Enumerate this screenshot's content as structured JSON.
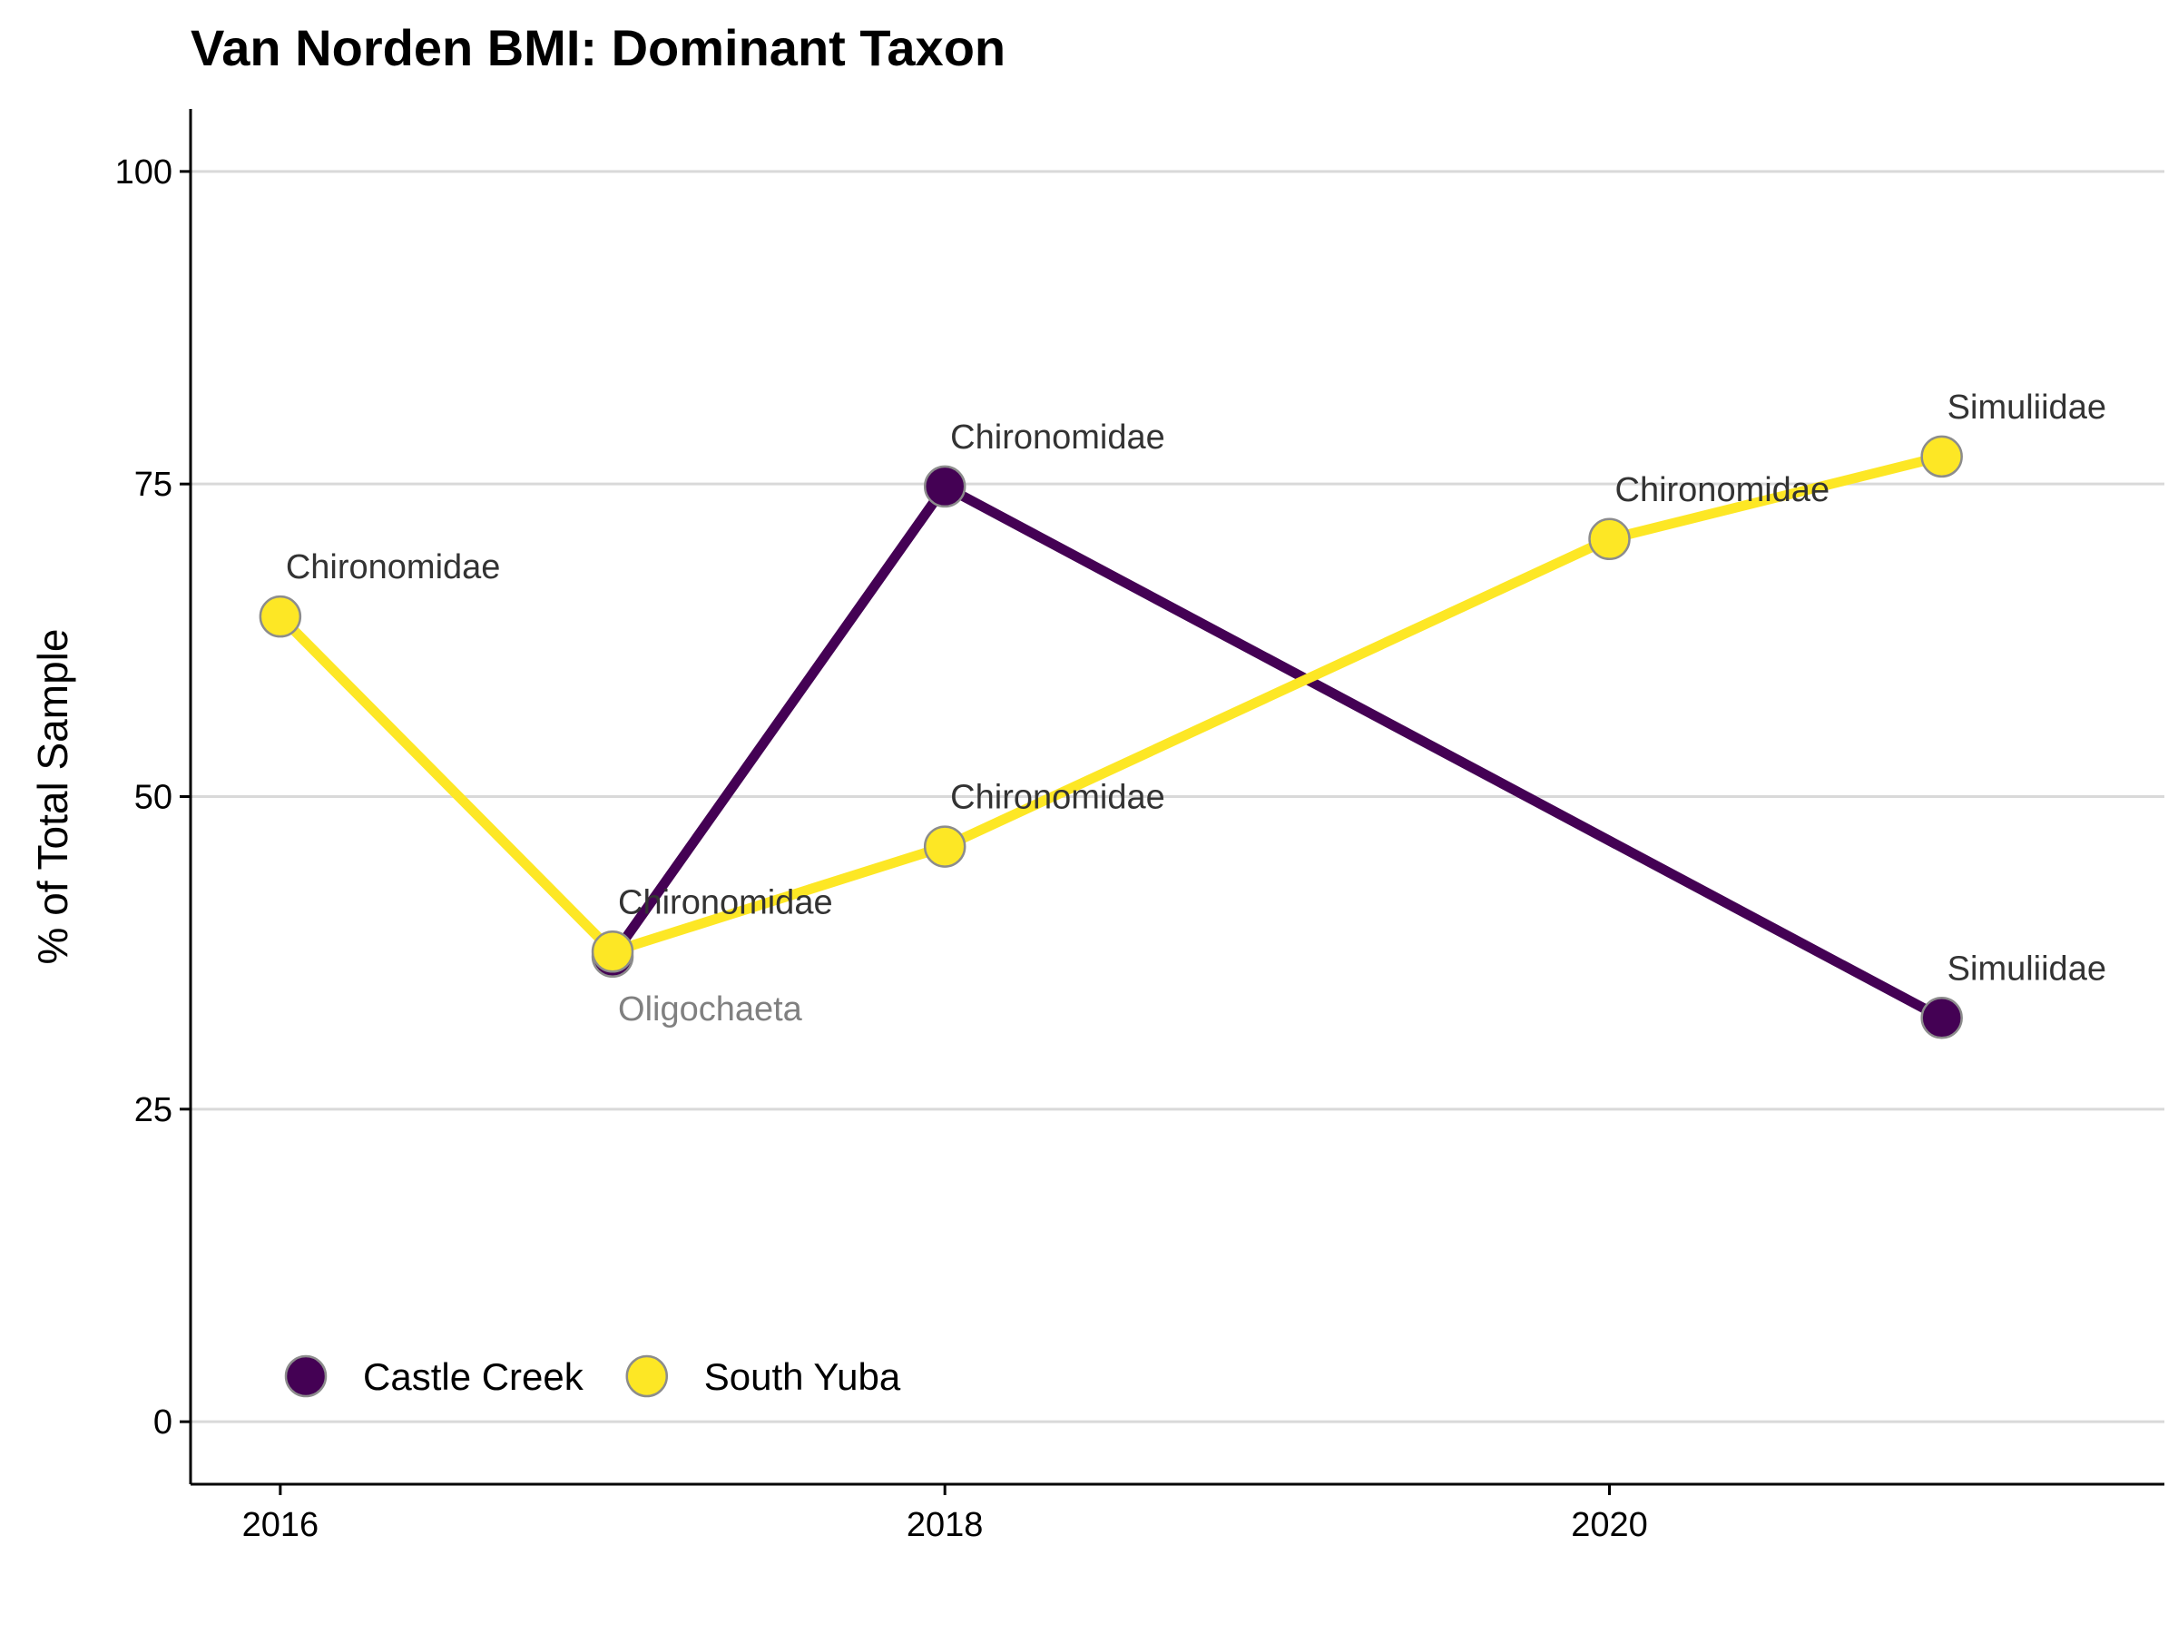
{
  "chart_data": {
    "type": "line",
    "title": "Van Norden BMI: Dominant Taxon",
    "xlabel": "",
    "ylabel": "% of Total Sample",
    "xlim": [
      2015.73,
      2021.67
    ],
    "ylim": [
      -5,
      105
    ],
    "xticks": [
      2016,
      2018,
      2020
    ],
    "yticks": [
      0,
      25,
      50,
      75,
      100
    ],
    "grid": "horizontal-major",
    "legend": {
      "placement": "bottom-left"
    },
    "series": [
      {
        "name": "Castle Creek",
        "color": "#440154",
        "points": [
          {
            "x": 2017,
            "y": 37.2,
            "label": "Oligochaeta",
            "label_color": "#808080",
            "label_pos": "below"
          },
          {
            "x": 2018,
            "y": 74.8,
            "label": "Chironomidae",
            "label_color": "#333333",
            "label_pos": "above"
          },
          {
            "x": 2021,
            "y": 32.3,
            "label": "Simuliidae",
            "label_color": "#333333",
            "label_pos": "above"
          }
        ]
      },
      {
        "name": "South Yuba",
        "color": "#fde725",
        "points": [
          {
            "x": 2016,
            "y": 64.4,
            "label": "Chironomidae",
            "label_color": "#333333",
            "label_pos": "above"
          },
          {
            "x": 2017,
            "y": 37.6,
            "label": "Chironomidae",
            "label_color": "#333333",
            "label_pos": "above"
          },
          {
            "x": 2018,
            "y": 46.0,
            "label": "Chironomidae",
            "label_color": "#333333",
            "label_pos": "above"
          },
          {
            "x": 2020,
            "y": 70.6,
            "label": "Chironomidae",
            "label_color": "#333333",
            "label_pos": "above"
          },
          {
            "x": 2021,
            "y": 77.2,
            "label": "Simuliidae",
            "label_color": "#333333",
            "label_pos": "above"
          }
        ]
      }
    ]
  }
}
